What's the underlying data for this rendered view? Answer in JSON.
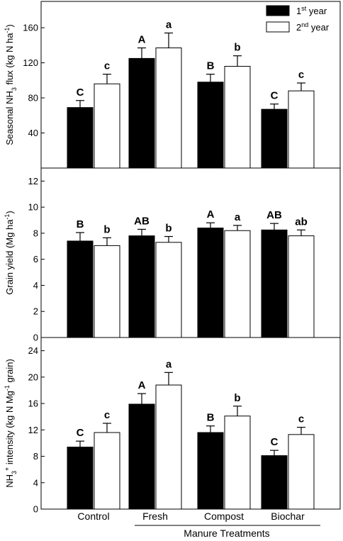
{
  "chart_data": [
    {
      "type": "bar",
      "categories": [
        "Control",
        "Fresh",
        "Compost",
        "Biochar"
      ],
      "ylabel": [
        "Seasonal NH",
        "3",
        " flux (kg N ha",
        "-1",
        ")"
      ],
      "ylim": [
        0,
        190
      ],
      "yticks": [
        40,
        80,
        120,
        160
      ],
      "legend": {
        "position": "top-right",
        "entries": [
          {
            "series": 0,
            "base": "1",
            "sup": "st",
            "tail": " year"
          },
          {
            "series": 1,
            "base": "2",
            "sup": "nd",
            "tail": " year"
          }
        ]
      },
      "series": [
        {
          "values": [
            69,
            125,
            98,
            67
          ],
          "errors": [
            8,
            12,
            9,
            6
          ],
          "letters": [
            "C",
            "A",
            "B",
            "C"
          ],
          "color": "#000000"
        },
        {
          "values": [
            96,
            137,
            116,
            88
          ],
          "errors": [
            11,
            17,
            12,
            9
          ],
          "letters": [
            "c",
            "a",
            "b",
            "c"
          ],
          "color": "#ffffff"
        }
      ]
    },
    {
      "type": "bar",
      "categories": [
        "Control",
        "Fresh",
        "Compost",
        "Biochar"
      ],
      "ylabel": [
        "Grain yield (Mg ha",
        "-1",
        ")"
      ],
      "ylim": [
        0,
        13
      ],
      "yticks": [
        0,
        2,
        4,
        6,
        8,
        10,
        12
      ],
      "series": [
        {
          "values": [
            7.4,
            7.8,
            8.4,
            8.25
          ],
          "errors": [
            0.65,
            0.5,
            0.4,
            0.5
          ],
          "letters": [
            "B",
            "AB",
            "A",
            "AB"
          ],
          "color": "#000000"
        },
        {
          "values": [
            7.05,
            7.3,
            8.2,
            7.8
          ],
          "errors": [
            0.6,
            0.45,
            0.4,
            0.45
          ],
          "letters": [
            "b",
            "b",
            "a",
            "ab"
          ],
          "color": "#ffffff"
        }
      ]
    },
    {
      "type": "bar",
      "categories": [
        "Control",
        "Fresh",
        "Compost",
        "Biochar"
      ],
      "ylabel": [
        "NH",
        "3",
        "",
        "+",
        " intensity (kg N Mg",
        "-1",
        " grain)"
      ],
      "ylim": [
        0,
        26
      ],
      "yticks": [
        0,
        4,
        8,
        12,
        16,
        20,
        24
      ],
      "series": [
        {
          "values": [
            9.4,
            15.9,
            11.6,
            8.1
          ],
          "errors": [
            0.9,
            1.6,
            1.0,
            0.8
          ],
          "letters": [
            "C",
            "A",
            "B",
            "C"
          ],
          "color": "#000000"
        },
        {
          "values": [
            11.6,
            18.8,
            14.1,
            11.3
          ],
          "errors": [
            1.4,
            1.9,
            1.5,
            1.1
          ],
          "letters": [
            "c",
            "a",
            "b",
            "c"
          ],
          "color": "#ffffff"
        }
      ]
    }
  ],
  "xaxis": {
    "categories": [
      "Control",
      "Fresh",
      "Compost",
      "Biochar"
    ],
    "group_label": "Manure Treatments"
  }
}
